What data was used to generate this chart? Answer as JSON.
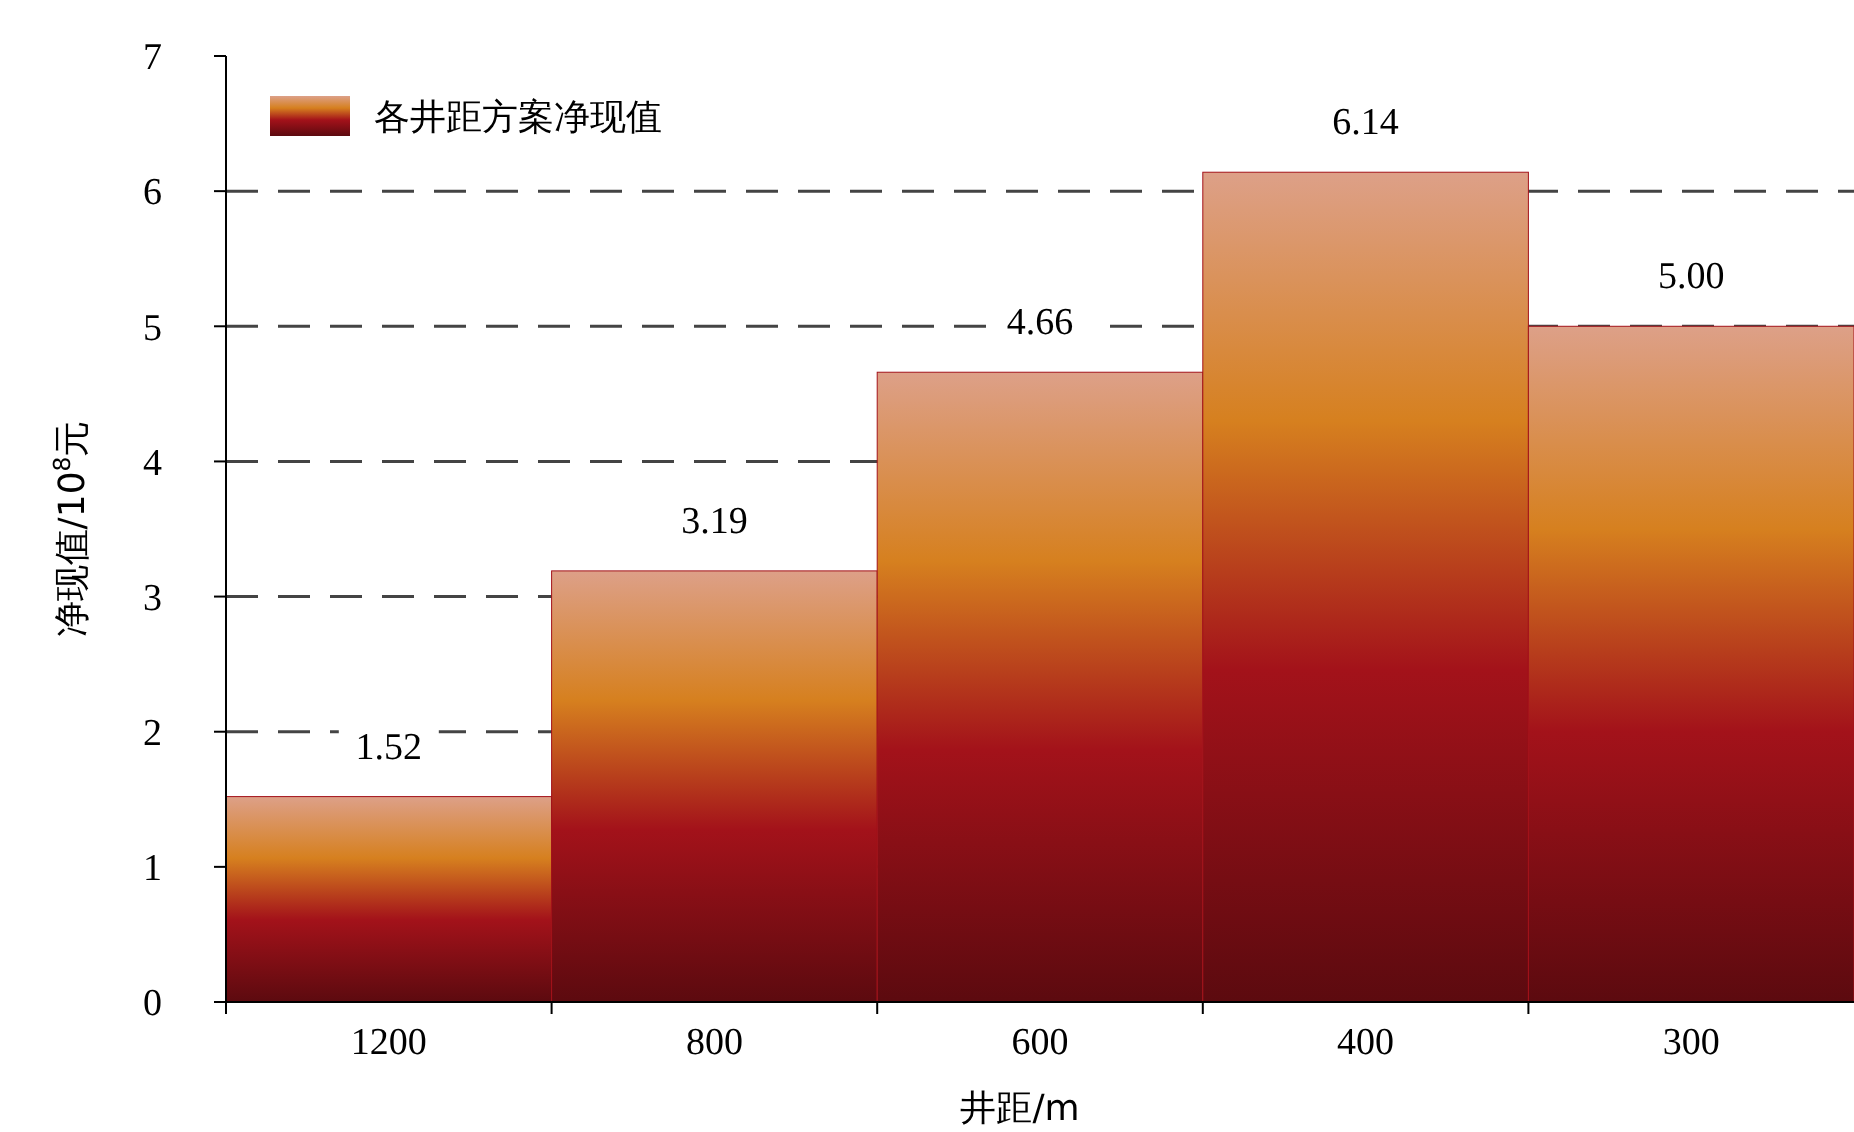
{
  "chart_data": {
    "type": "bar",
    "xlabel": "井距/m",
    "ylabel": "净现值/10$^{8}$元",
    "categories": [
      "1200",
      "800",
      "600",
      "400",
      "300"
    ],
    "series": [
      {
        "name": "各井距方案净现值",
        "color": "#a3121a",
        "values": [
          1.52,
          3.19,
          4.66,
          6.14,
          5.0
        ],
        "value_labels": [
          "1.52",
          "3.19",
          "4.66",
          "6.14",
          "5.00"
        ]
      }
    ],
    "ylim": [
      0,
      7
    ],
    "yticks": [
      0,
      1,
      2,
      3,
      4,
      5,
      6,
      7
    ],
    "grid": "y",
    "legend": "top left"
  }
}
